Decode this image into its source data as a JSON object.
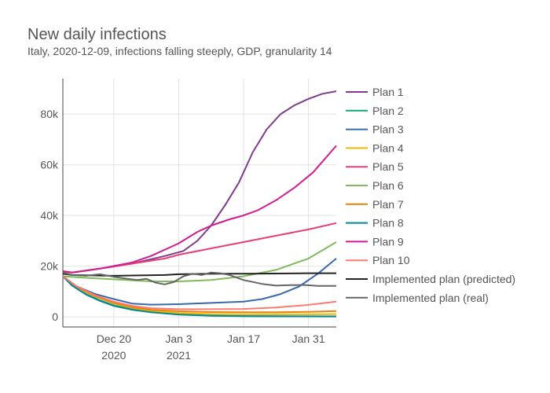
{
  "chart_data": {
    "type": "line",
    "title": "New daily infections",
    "subtitle": "Italy, 2020-12-09, infections falling steeply, GDP, granularity 14",
    "xlabel": "",
    "ylabel": "",
    "x_start": "2020-12-09",
    "x_end": "2021-02-06",
    "x_ticks": [
      {
        "date": "2020-12-20",
        "label": "Dec 20",
        "sublabel": "2020"
      },
      {
        "date": "2021-01-03",
        "label": "Jan 3",
        "sublabel": "2021"
      },
      {
        "date": "2021-01-17",
        "label": "Jan 17",
        "sublabel": ""
      },
      {
        "date": "2021-01-31",
        "label": "Jan 31",
        "sublabel": ""
      }
    ],
    "ylim": [
      -4000,
      94000
    ],
    "y_ticks": [
      {
        "value": 0,
        "label": "0"
      },
      {
        "value": 20000,
        "label": "20k"
      },
      {
        "value": 40000,
        "label": "40k"
      },
      {
        "value": 60000,
        "label": "60k"
      },
      {
        "value": 80000,
        "label": "80k"
      }
    ],
    "grid": true,
    "legend_position": "right",
    "series": [
      {
        "name": "Plan 1",
        "color": "#7f3c8d",
        "points": [
          [
            "2020-12-09",
            18000
          ],
          [
            "2020-12-11",
            17500
          ],
          [
            "2020-12-17",
            19000
          ],
          [
            "2020-12-24",
            21000
          ],
          [
            "2020-12-31",
            24000
          ],
          [
            "2021-01-04",
            26000
          ],
          [
            "2021-01-07",
            30000
          ],
          [
            "2021-01-10",
            36000
          ],
          [
            "2021-01-13",
            44000
          ],
          [
            "2021-01-16",
            53000
          ],
          [
            "2021-01-19",
            65000
          ],
          [
            "2021-01-22",
            74000
          ],
          [
            "2021-01-25",
            80000
          ],
          [
            "2021-01-28",
            83500
          ],
          [
            "2021-01-31",
            86000
          ],
          [
            "2021-02-03",
            88000
          ],
          [
            "2021-02-06",
            89000
          ]
        ]
      },
      {
        "name": "Plan 2",
        "color": "#11a579",
        "points": [
          [
            "2020-12-09",
            16000
          ],
          [
            "2020-12-11",
            12500
          ],
          [
            "2020-12-14",
            9000
          ],
          [
            "2020-12-17",
            6500
          ],
          [
            "2020-12-20",
            4500
          ],
          [
            "2020-12-24",
            3000
          ],
          [
            "2020-12-28",
            2000
          ],
          [
            "2021-01-03",
            1000
          ],
          [
            "2021-01-10",
            500
          ],
          [
            "2021-01-17",
            300
          ],
          [
            "2021-02-06",
            200
          ]
        ]
      },
      {
        "name": "Plan 3",
        "color": "#3969ac",
        "points": [
          [
            "2020-12-09",
            16000
          ],
          [
            "2020-12-12",
            12000
          ],
          [
            "2020-12-16",
            9000
          ],
          [
            "2020-12-20",
            7000
          ],
          [
            "2020-12-24",
            5200
          ],
          [
            "2020-12-28",
            4800
          ],
          [
            "2021-01-03",
            5000
          ],
          [
            "2021-01-10",
            5500
          ],
          [
            "2021-01-17",
            6000
          ],
          [
            "2021-01-21",
            7000
          ],
          [
            "2021-01-25",
            9000
          ],
          [
            "2021-01-29",
            12000
          ],
          [
            "2021-02-02",
            17000
          ],
          [
            "2021-02-06",
            23000
          ]
        ]
      },
      {
        "name": "Plan 4",
        "color": "#f2b701",
        "points": [
          [
            "2020-12-09",
            16000
          ],
          [
            "2020-12-12",
            11500
          ],
          [
            "2020-12-16",
            8000
          ],
          [
            "2020-12-20",
            5200
          ],
          [
            "2020-12-24",
            3500
          ],
          [
            "2020-12-28",
            2300
          ],
          [
            "2021-01-03",
            1500
          ],
          [
            "2021-01-10",
            1100
          ],
          [
            "2021-01-17",
            1000
          ],
          [
            "2021-01-24",
            1000
          ],
          [
            "2021-01-31",
            1000
          ],
          [
            "2021-02-06",
            1100
          ]
        ]
      },
      {
        "name": "Plan 5",
        "color": "#e73f74",
        "points": [
          [
            "2020-12-09",
            18000
          ],
          [
            "2020-12-11",
            17500
          ],
          [
            "2020-12-17",
            19000
          ],
          [
            "2020-12-24",
            21000
          ],
          [
            "2020-12-31",
            23000
          ],
          [
            "2021-01-03",
            24500
          ],
          [
            "2021-01-10",
            27000
          ],
          [
            "2021-01-17",
            29500
          ],
          [
            "2021-01-24",
            32000
          ],
          [
            "2021-01-31",
            34500
          ],
          [
            "2021-02-06",
            37000
          ]
        ]
      },
      {
        "name": "Plan 6",
        "color": "#80ba5a",
        "points": [
          [
            "2020-12-09",
            16000
          ],
          [
            "2020-12-13",
            15500
          ],
          [
            "2020-12-20",
            14800
          ],
          [
            "2020-12-28",
            14000
          ],
          [
            "2021-01-03",
            14000
          ],
          [
            "2021-01-10",
            14500
          ],
          [
            "2021-01-17",
            16000
          ],
          [
            "2021-01-24",
            18500
          ],
          [
            "2021-01-31",
            23000
          ],
          [
            "2021-02-06",
            29500
          ]
        ]
      },
      {
        "name": "Plan 7",
        "color": "#e68310",
        "points": [
          [
            "2020-12-09",
            16000
          ],
          [
            "2020-12-12",
            11800
          ],
          [
            "2020-12-16",
            8200
          ],
          [
            "2020-12-20",
            5500
          ],
          [
            "2020-12-24",
            3800
          ],
          [
            "2020-12-28",
            2800
          ],
          [
            "2021-01-03",
            2200
          ],
          [
            "2021-01-10",
            1900
          ],
          [
            "2021-01-17",
            1800
          ],
          [
            "2021-01-24",
            1800
          ],
          [
            "2021-01-31",
            2000
          ],
          [
            "2021-02-06",
            2300
          ]
        ]
      },
      {
        "name": "Plan 8",
        "color": "#008695",
        "points": [
          [
            "2020-12-09",
            16000
          ],
          [
            "2020-12-11",
            12300
          ],
          [
            "2020-12-14",
            8800
          ],
          [
            "2020-12-17",
            6300
          ],
          [
            "2020-12-20",
            4300
          ],
          [
            "2020-12-24",
            2800
          ],
          [
            "2020-12-28",
            1800
          ],
          [
            "2021-01-03",
            900
          ],
          [
            "2021-01-10",
            450
          ],
          [
            "2021-01-17",
            250
          ],
          [
            "2021-02-06",
            150
          ]
        ]
      },
      {
        "name": "Plan 9",
        "color": "#cf1c90",
        "points": [
          [
            "2020-12-09",
            18000
          ],
          [
            "2020-12-11",
            17500
          ],
          [
            "2020-12-17",
            19000
          ],
          [
            "2020-12-24",
            21500
          ],
          [
            "2020-12-28",
            24000
          ],
          [
            "2021-01-03",
            29000
          ],
          [
            "2021-01-07",
            33500
          ],
          [
            "2021-01-10",
            36000
          ],
          [
            "2021-01-14",
            38500
          ],
          [
            "2021-01-17",
            40000
          ],
          [
            "2021-01-20",
            42000
          ],
          [
            "2021-01-24",
            46000
          ],
          [
            "2021-01-28",
            51000
          ],
          [
            "2021-02-01",
            57000
          ],
          [
            "2021-02-06",
            67500
          ]
        ]
      },
      {
        "name": "Plan 10",
        "color": "#f97b72",
        "points": [
          [
            "2020-12-09",
            16000
          ],
          [
            "2020-12-12",
            12000
          ],
          [
            "2020-12-16",
            8500
          ],
          [
            "2020-12-20",
            6000
          ],
          [
            "2020-12-24",
            4300
          ],
          [
            "2020-12-28",
            3400
          ],
          [
            "2021-01-03",
            3000
          ],
          [
            "2021-01-10",
            3000
          ],
          [
            "2021-01-17",
            3100
          ],
          [
            "2021-01-24",
            3700
          ],
          [
            "2021-01-31",
            4700
          ],
          [
            "2021-02-06",
            6000
          ]
        ]
      },
      {
        "name": "Implemented plan (predicted)",
        "color": "#222222",
        "points": [
          [
            "2020-12-09",
            17000
          ],
          [
            "2020-12-11",
            16500
          ],
          [
            "2020-12-20",
            16200
          ],
          [
            "2020-12-31",
            16500
          ],
          [
            "2021-01-03",
            16800
          ],
          [
            "2021-01-10",
            17000
          ],
          [
            "2021-01-17",
            17000
          ],
          [
            "2021-01-24",
            17100
          ],
          [
            "2021-01-31",
            17200
          ],
          [
            "2021-02-06",
            17200
          ]
        ]
      },
      {
        "name": "Implemented plan (real)",
        "color": "#666666",
        "points": [
          [
            "2020-12-09",
            17500
          ],
          [
            "2020-12-11",
            16500
          ],
          [
            "2020-12-14",
            16200
          ],
          [
            "2020-12-17",
            16800
          ],
          [
            "2020-12-20",
            15800
          ],
          [
            "2020-12-23",
            15000
          ],
          [
            "2020-12-25",
            14500
          ],
          [
            "2020-12-27",
            15000
          ],
          [
            "2020-12-29",
            13500
          ],
          [
            "2020-12-31",
            12800
          ],
          [
            "2021-01-02",
            13800
          ],
          [
            "2021-01-04",
            16000
          ],
          [
            "2021-01-06",
            17000
          ],
          [
            "2021-01-08",
            16500
          ],
          [
            "2021-01-10",
            17500
          ],
          [
            "2021-01-12",
            17200
          ],
          [
            "2021-01-14",
            16500
          ],
          [
            "2021-01-17",
            14500
          ],
          [
            "2021-01-21",
            13000
          ],
          [
            "2021-01-24",
            12300
          ],
          [
            "2021-01-27",
            12500
          ],
          [
            "2021-01-30",
            12600
          ],
          [
            "2021-02-02",
            12200
          ],
          [
            "2021-02-06",
            12200
          ]
        ]
      }
    ]
  }
}
